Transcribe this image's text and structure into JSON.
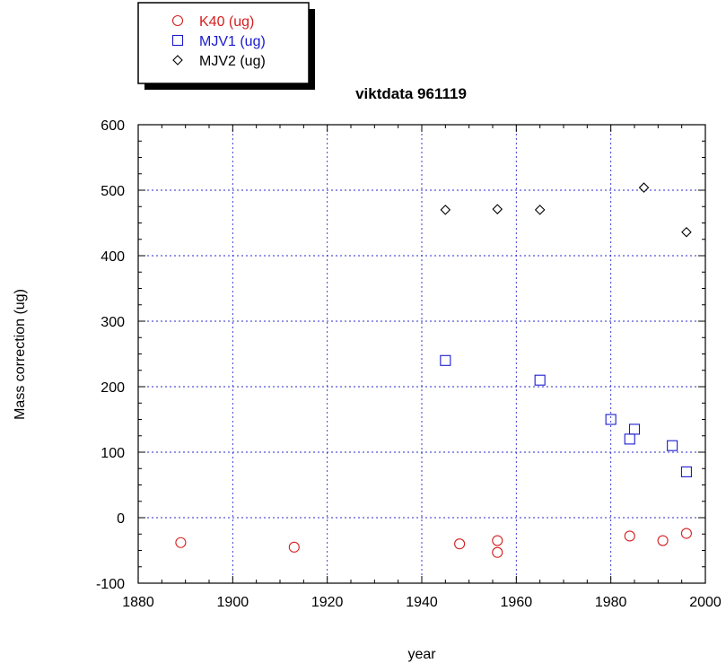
{
  "chart_data": {
    "type": "scatter",
    "title": "viktdata 961119",
    "xlabel": "year",
    "ylabel": "Mass correction (ug)",
    "xlim": [
      1880,
      2000
    ],
    "ylim": [
      -100,
      600
    ],
    "x_ticks": [
      1880,
      1900,
      1920,
      1940,
      1960,
      1980,
      2000
    ],
    "y_ticks": [
      -100,
      0,
      100,
      200,
      300,
      400,
      500,
      600
    ],
    "x_tick_labels": [
      "1880",
      "1900",
      "1920",
      "1940",
      "1960",
      "1980",
      "2000"
    ],
    "y_tick_labels": [
      "-100",
      "0",
      "100",
      "200",
      "300",
      "400",
      "500",
      "600"
    ],
    "grid": true,
    "legend_placement": "top-left, outside plot",
    "series": [
      {
        "name": "K40 (ug)",
        "marker": "circle",
        "color": "#d42020",
        "x": [
          1889,
          1913,
          1948,
          1956,
          1956,
          1984,
          1991,
          1996
        ],
        "y": [
          -38,
          -45,
          -40,
          -35,
          -53,
          -28,
          -35,
          -24
        ]
      },
      {
        "name": "MJV1 (ug)",
        "marker": "square",
        "color": "#1a1ad0",
        "x": [
          1945,
          1965,
          1980,
          1984,
          1985,
          1993,
          1996
        ],
        "y": [
          240,
          210,
          150,
          120,
          135,
          110,
          70
        ]
      },
      {
        "name": "MJV2 (ug)",
        "marker": "diamond",
        "color": "#000000",
        "x": [
          1945,
          1956,
          1965,
          1987,
          1996
        ],
        "y": [
          470,
          471,
          470,
          504,
          436
        ]
      }
    ]
  }
}
